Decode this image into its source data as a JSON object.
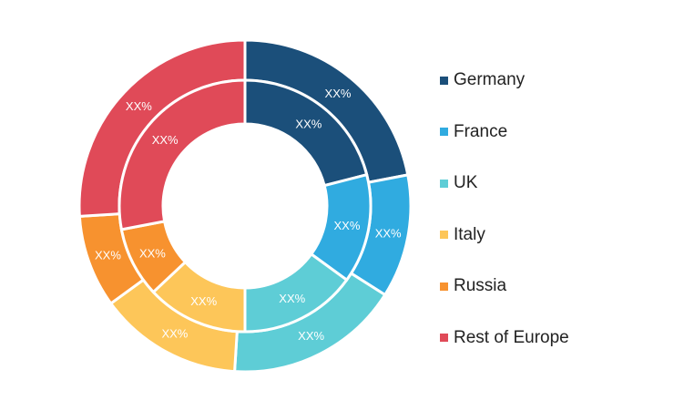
{
  "chart_data": {
    "type": "pie",
    "variant": "double-donut",
    "legend_position": "right",
    "categories": [
      "Germany",
      "France",
      "UK",
      "Italy",
      "Russia",
      "Rest of Europe"
    ],
    "colors": [
      "#1b4f7a",
      "#30abe0",
      "#5ecdd6",
      "#fdc659",
      "#f7922f",
      "#e04a58"
    ],
    "series": [
      {
        "ring": "outer",
        "values": [
          22,
          12,
          17,
          14,
          9,
          26
        ],
        "labels": [
          "XX%",
          "XX%",
          "XX%",
          "XX%",
          "XX%",
          "XX%"
        ]
      },
      {
        "ring": "inner",
        "values": [
          21,
          14,
          15,
          13,
          9,
          28
        ],
        "labels": [
          "XX%",
          "XX%",
          "XX%",
          "XX%",
          "XX%",
          "XX%"
        ]
      }
    ]
  }
}
